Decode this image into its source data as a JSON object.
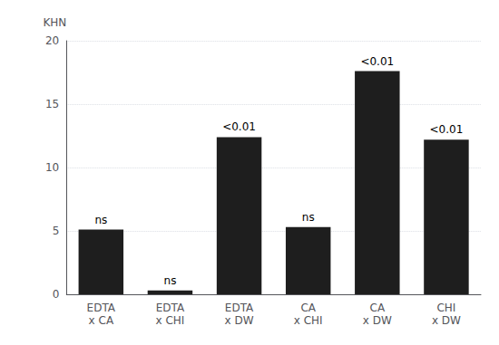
{
  "chart_data": {
    "type": "bar",
    "ylabel": "KHN",
    "categories": [
      "EDTA\nx CA",
      "EDTA\nx CHI",
      "EDTA\nx DW",
      "CA\nx CHI",
      "CA\nx DW",
      "CHI\nx DW"
    ],
    "values": [
      5.1,
      0.3,
      12.4,
      5.3,
      17.6,
      12.2
    ],
    "annotations": [
      "ns",
      "ns",
      "<0.01",
      "ns",
      "<0.01",
      "<0.01"
    ],
    "color": "#1e1e1e",
    "ylim": [
      0,
      20
    ],
    "yticks": [
      0,
      5,
      10,
      15,
      20
    ],
    "grid": true
  }
}
